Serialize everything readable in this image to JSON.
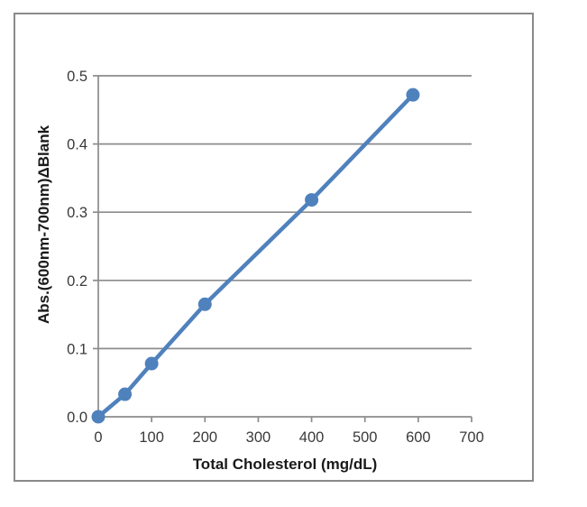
{
  "chart_data": {
    "type": "scatter",
    "subtype": "scatter-with-straight-lines-and-markers",
    "title": "",
    "xlabel": "Total Cholesterol (mg/dL)",
    "ylabel": "Abs.(600nm-700nm)ΔBlank",
    "xlim": [
      0,
      700
    ],
    "ylim": [
      0,
      0.5
    ],
    "xticks": [
      "0",
      "100",
      "200",
      "300",
      "400",
      "500",
      "600",
      "700"
    ],
    "yticks": [
      "0.0",
      "0.1",
      "0.2",
      "0.3",
      "0.4",
      "0.5"
    ],
    "grid": "horizontal-only",
    "legend_position": "none",
    "series": [
      {
        "name": "cholesterol-standard-curve",
        "marker": "circle",
        "x": [
          0,
          50,
          100,
          200,
          400,
          590
        ],
        "y": [
          0.0,
          0.033,
          0.078,
          0.165,
          0.318,
          0.472
        ]
      }
    ],
    "colors": {
      "series": "#4F81BD",
      "gridline": "#8c8c8c",
      "axis": "#8c8c8c",
      "tick_label": "#3a3a3a",
      "axis_title": "#1a1a1a",
      "frame_border": "#8a8a8a",
      "background": "#ffffff"
    }
  }
}
